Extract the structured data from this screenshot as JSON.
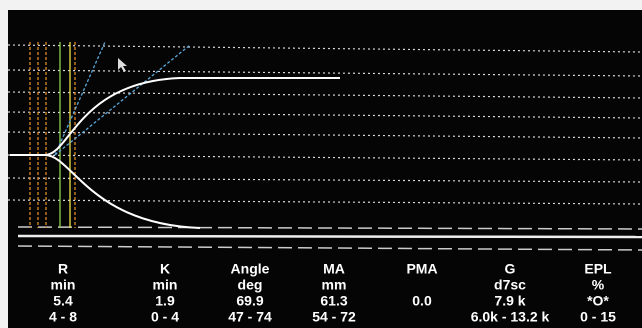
{
  "parameters": [
    {
      "name": "R",
      "unit": "min",
      "value": "5.4",
      "range": "4 - 8"
    },
    {
      "name": "K",
      "unit": "min",
      "value": "1.9",
      "range": "0 - 4"
    },
    {
      "name": "Angle",
      "unit": "deg",
      "value": "69.9",
      "range": "47 - 74"
    },
    {
      "name": "MA",
      "unit": "mm",
      "value": "61.3",
      "range": "54 - 72"
    },
    {
      "name": "PMA",
      "value": "0.0"
    },
    {
      "name": "G",
      "unit": "d7sc",
      "value": "7.9 k",
      "range": "6.0k - 13.2 k"
    },
    {
      "name": "EPL",
      "unit": "%",
      "value": "*O*",
      "range": "0 - 15"
    }
  ]
}
